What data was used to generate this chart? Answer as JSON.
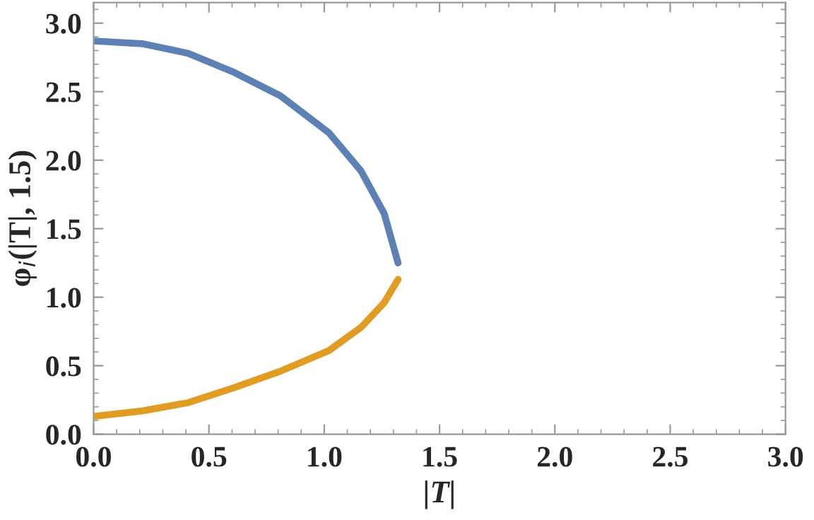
{
  "chart_data": {
    "type": "line",
    "xlabel": "|T|",
    "ylabel": "φ$_{i}$(|T|, 1.5)",
    "xlim": [
      0,
      3.0
    ],
    "ylim": [
      0,
      3.15
    ],
    "xticks": [
      {
        "value": 0,
        "label": "0.0"
      },
      0.5,
      {
        "value": 1,
        "label": "1.0"
      },
      1.5,
      {
        "value": 2,
        "label": "2.0"
      },
      2.5,
      {
        "value": 3,
        "label": "3.0"
      }
    ],
    "yticks": [
      {
        "value": 0,
        "label": "0.0"
      },
      0.5,
      {
        "value": 1,
        "label": "1.0"
      },
      1.5,
      {
        "value": 2,
        "label": "2.0"
      },
      2.5,
      {
        "value": 3,
        "label": "3.0"
      }
    ],
    "grid": false,
    "marker": "none",
    "line_style": "solid",
    "series": [
      {
        "color": "#5e81b5",
        "x": [
          0,
          0.21,
          0.41,
          0.61,
          0.81,
          1.02,
          1.16,
          1.26,
          1.32
        ],
        "values": [
          2.87,
          2.85,
          2.78,
          2.64,
          2.47,
          2.2,
          1.92,
          1.61,
          1.25
        ]
      },
      {
        "color": "#e19c24",
        "x": [
          0,
          0.21,
          0.41,
          0.61,
          0.81,
          1.02,
          1.16,
          1.26,
          1.32
        ],
        "values": [
          0.13,
          0.17,
          0.23,
          0.34,
          0.46,
          0.61,
          0.78,
          0.96,
          1.13
        ]
      }
    ]
  }
}
